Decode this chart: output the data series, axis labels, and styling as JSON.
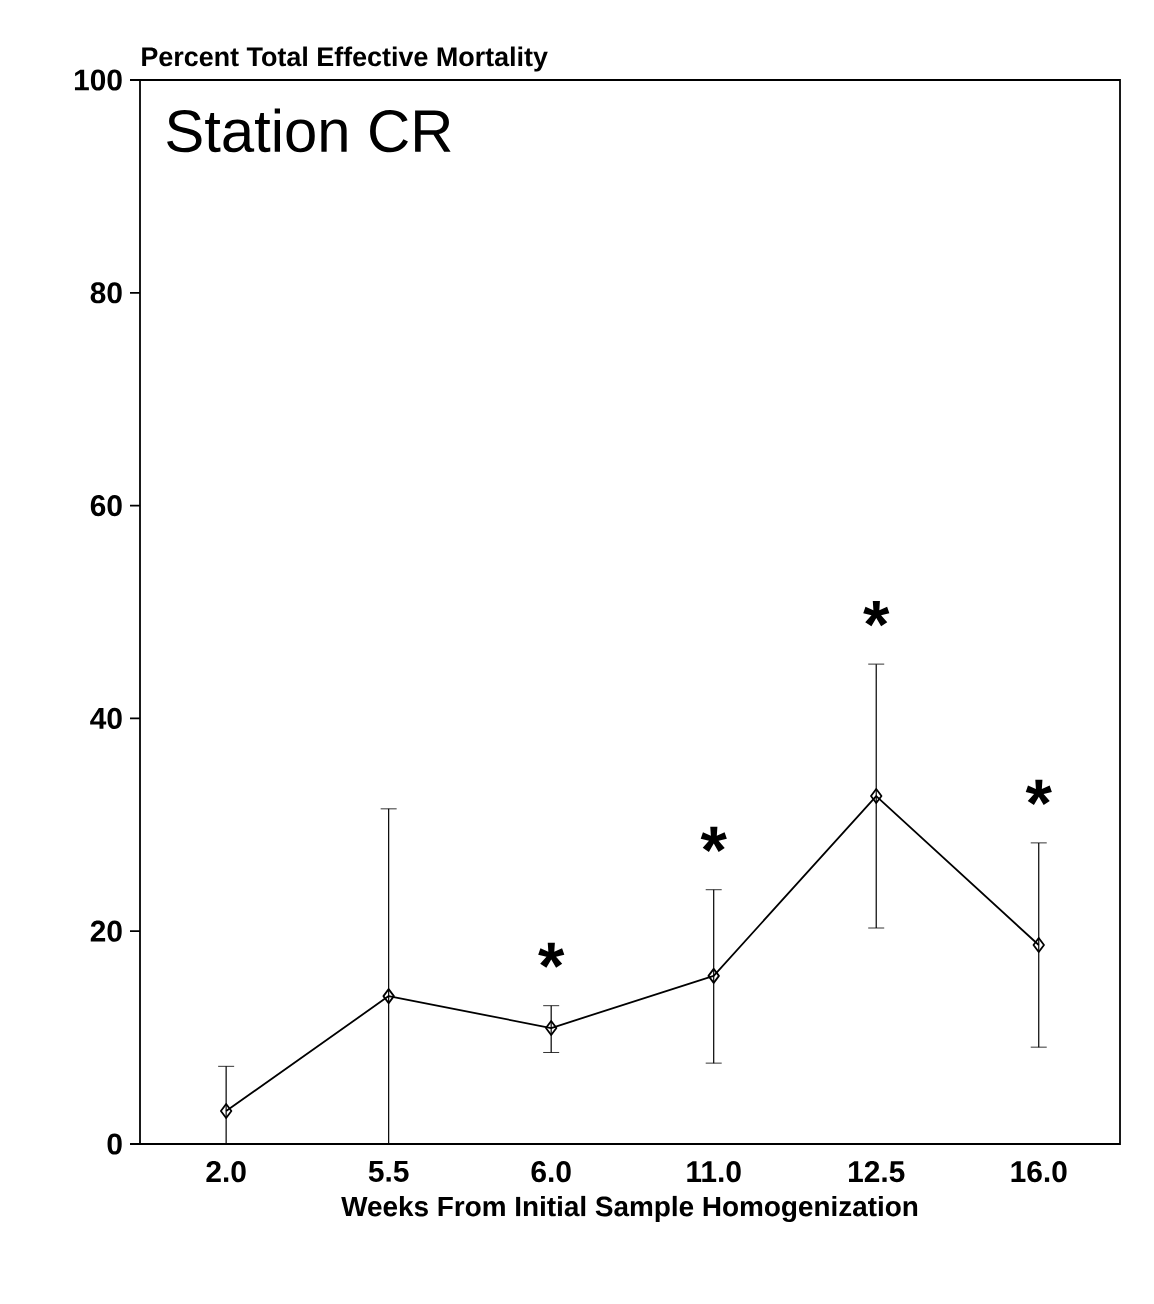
{
  "chart_data": {
    "type": "line",
    "title": "Station CR",
    "ylabel": "Percent Total Effective Mortality",
    "xlabel": "Weeks From Initial Sample Homogenization",
    "categories": [
      "2.0",
      "5.5",
      "6.0",
      "11.0",
      "12.5",
      "16.0"
    ],
    "values": [
      3.1,
      13.9,
      10.9,
      15.8,
      32.7,
      18.7
    ],
    "errors": [
      [
        0,
        7.3
      ],
      [
        0,
        31.5
      ],
      [
        8.6,
        13.0
      ],
      [
        7.6,
        23.9
      ],
      [
        20.3,
        45.1
      ],
      [
        9.1,
        28.3
      ]
    ],
    "color": "#000000",
    "marker": "diamond",
    "line_style": "solid",
    "ylim": [
      0,
      100
    ],
    "yticks": [
      0,
      20,
      40,
      60,
      80,
      100
    ],
    "grid": false,
    "annotations": [
      "*",
      "*",
      "*",
      "*"
    ]
  }
}
